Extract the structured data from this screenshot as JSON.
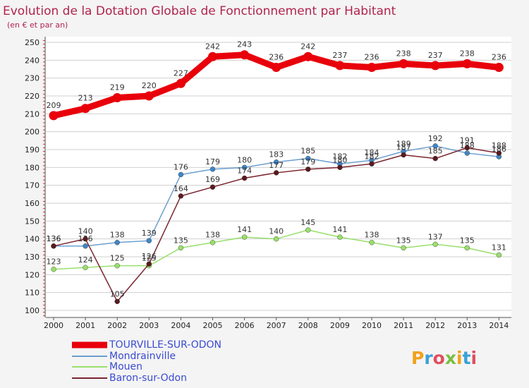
{
  "chart_data": {
    "type": "line",
    "title": "Evolution de la Dotation Globale de Fonctionnement par Habitant",
    "subtitle": "(en € et par an)",
    "xlabel": "",
    "ylabel": "",
    "ylim": [
      100,
      250
    ],
    "yticks": [
      100,
      110,
      120,
      130,
      140,
      150,
      160,
      170,
      180,
      190,
      200,
      210,
      220,
      230,
      240,
      250
    ],
    "categories": [
      "2000",
      "2001",
      "2002",
      "2003",
      "2004",
      "2005",
      "2006",
      "2007",
      "2008",
      "2009",
      "2010",
      "2011",
      "2012",
      "2013",
      "2014"
    ],
    "legend_position": "bottom-left",
    "series": [
      {
        "name": "TOURVILLE-SUR-ODON",
        "color": "#e8000b",
        "point_color": "#e8000b",
        "values": [
          209,
          213,
          219,
          220,
          227,
          242,
          243,
          236,
          242,
          237,
          236,
          238,
          237,
          238,
          236
        ]
      },
      {
        "name": "Mondrainville",
        "color": "#6c9fd0",
        "point_color": "#3f86c6",
        "values": [
          136,
          136,
          138,
          139,
          176,
          179,
          180,
          183,
          185,
          182,
          184,
          189,
          192,
          188,
          186
        ]
      },
      {
        "name": "Mouen",
        "color": "#98df6c",
        "point_color": "#98df6c",
        "values": [
          123,
          124,
          125,
          125,
          135,
          138,
          141,
          140,
          145,
          141,
          138,
          135,
          137,
          135,
          131
        ]
      },
      {
        "name": "Baron-sur-Odon",
        "color": "#7a2630",
        "point_color": "#5a1a1f",
        "values": [
          136,
          140,
          105,
          126,
          164,
          169,
          174,
          177,
          179,
          180,
          182,
          187,
          185,
          191,
          188
        ]
      }
    ]
  },
  "logo": {
    "text": "Proxiti"
  }
}
